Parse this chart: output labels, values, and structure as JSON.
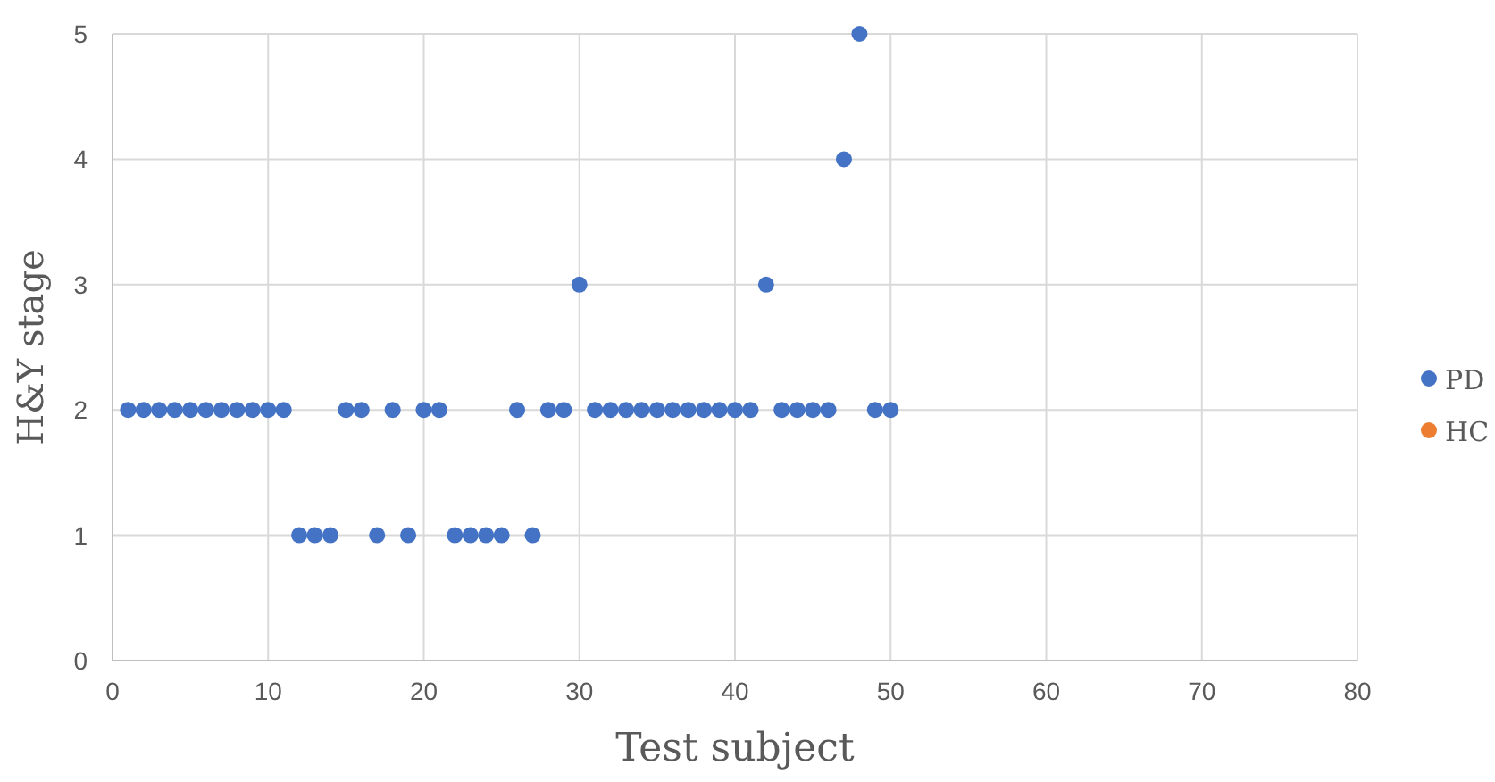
{
  "chart_data": {
    "type": "scatter",
    "xlabel": "Test subject",
    "ylabel": "H&Y stage",
    "xlim": [
      0,
      80
    ],
    "xticks": [
      0,
      10,
      20,
      30,
      40,
      50,
      60,
      70,
      80
    ],
    "ylim": [
      0,
      5
    ],
    "yticks": [
      0,
      1,
      2,
      3,
      4,
      5
    ],
    "grid": true,
    "legend": "right",
    "marker": "circle",
    "series": [
      {
        "name": "PD",
        "color": "#4472c4",
        "x": [
          1,
          2,
          3,
          4,
          5,
          6,
          7,
          8,
          9,
          10,
          11,
          12,
          13,
          14,
          15,
          16,
          17,
          18,
          19,
          20,
          21,
          22,
          23,
          24,
          25,
          26,
          27,
          28,
          29,
          30,
          31,
          32,
          33,
          34,
          35,
          36,
          37,
          38,
          39,
          40,
          41,
          42,
          43,
          44,
          45,
          46,
          47,
          48,
          49,
          50
        ],
        "values": [
          2,
          2,
          2,
          2,
          2,
          2,
          2,
          2,
          2,
          2,
          2,
          1,
          1,
          1,
          2,
          2,
          1,
          2,
          1,
          2,
          2,
          1,
          1,
          1,
          1,
          2,
          1,
          2,
          2,
          3,
          2,
          2,
          2,
          2,
          2,
          2,
          2,
          2,
          2,
          2,
          2,
          3,
          2,
          2,
          2,
          2,
          4,
          5,
          2,
          2
        ]
      },
      {
        "name": "HC",
        "color": "#ed7d31"
      }
    ]
  }
}
